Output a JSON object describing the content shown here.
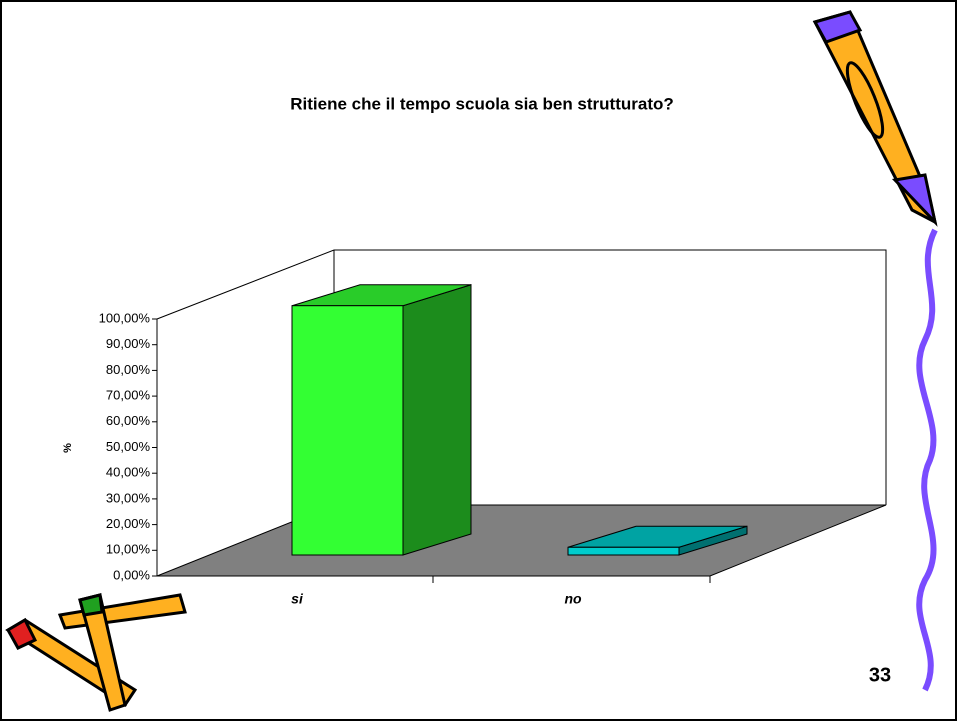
{
  "chart_data": {
    "type": "bar3d",
    "title": "Ritiene che il tempo scuola sia ben strutturato?",
    "ylabel": "%",
    "categories": [
      "si",
      "no"
    ],
    "values": [
      97,
      3
    ],
    "colors": [
      "#33ff33",
      "#00cccc"
    ],
    "ylim": [
      0,
      100
    ],
    "yticks": [
      {
        "value": 0,
        "label": "0,00%"
      },
      {
        "value": 10,
        "label": "10,00%"
      },
      {
        "value": 20,
        "label": "20,00%"
      },
      {
        "value": 30,
        "label": "30,00%"
      },
      {
        "value": 40,
        "label": "40,00%"
      },
      {
        "value": 50,
        "label": "50,00%"
      },
      {
        "value": 60,
        "label": "60,00%"
      },
      {
        "value": 70,
        "label": "70,00%"
      },
      {
        "value": 80,
        "label": "80,00%"
      },
      {
        "value": 90,
        "label": "90,00%"
      },
      {
        "value": 100,
        "label": "100,00%"
      }
    ]
  },
  "slide_number": "33"
}
